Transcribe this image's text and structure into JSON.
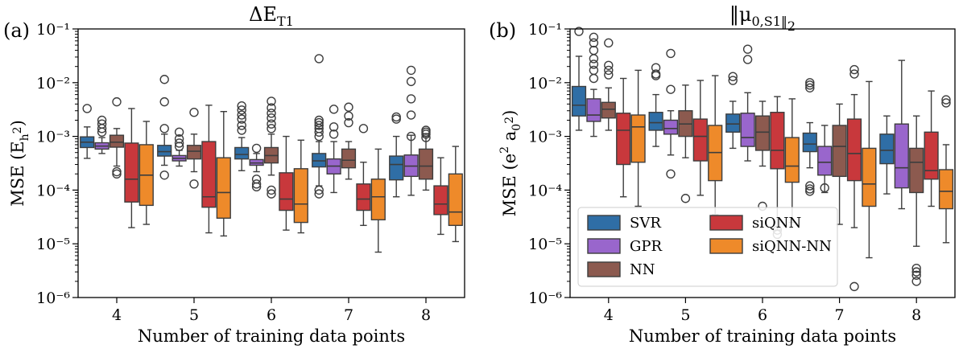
{
  "chart_data": [
    {
      "type": "box",
      "panel_label": "(a)",
      "title": "ΔE_T1",
      "xlabel": "Number of training data points",
      "ylabel": "MSE (E_h^2)",
      "yscale": "log",
      "ylim": [
        1e-06,
        0.1
      ],
      "y_ticks": [
        {
          "value": 1e-06,
          "label": "10⁻⁶"
        },
        {
          "value": 1e-05,
          "label": "10⁻⁵"
        },
        {
          "value": 0.0001,
          "label": "10⁻⁴"
        },
        {
          "value": 0.001,
          "label": "10⁻³"
        },
        {
          "value": 0.01,
          "label": "10⁻²"
        },
        {
          "value": 0.1,
          "label": "10⁻¹"
        }
      ],
      "categories": [
        "4",
        "5",
        "6",
        "7",
        "8"
      ],
      "series": [
        {
          "name": "SVR",
          "color": "#2f6ea6",
          "boxes": [
            {
              "whislo": 0.00039,
              "q1": 0.00062,
              "med": 0.00078,
              "q3": 0.00098,
              "whishi": 0.0015,
              "fliers": [
                0.0033
              ]
            },
            {
              "whislo": 0.00029,
              "q1": 0.00043,
              "med": 0.00052,
              "q3": 0.00068,
              "whishi": 0.0011,
              "fliers": [
                0.0014,
                0.0044,
                0.0115,
                0.00019
              ]
            },
            {
              "whislo": 0.00023,
              "q1": 0.00038,
              "med": 0.00046,
              "q3": 0.00062,
              "whishi": 0.00095,
              "fliers": [
                0.0013,
                0.0016,
                0.0021,
                0.0025,
                0.0031,
                0.0037
              ]
            },
            {
              "whislo": 0.00012,
              "q1": 0.00027,
              "med": 0.00035,
              "q3": 0.00048,
              "whishi": 0.0008,
              "fliers": [
                0.001,
                0.0012,
                0.0014,
                0.0016,
                0.0018,
                0.002,
                0.0001,
                8.5e-05,
                0.028
              ]
            },
            {
              "whislo": 7.5e-05,
              "q1": 0.000155,
              "med": 0.0003,
              "q3": 0.00043,
              "whishi": 0.001,
              "fliers": [
                0.0021,
                0.0023
              ]
            }
          ]
        },
        {
          "name": "GPR",
          "color": "#9966cc",
          "boxes": [
            {
              "whislo": 0.00048,
              "q1": 0.00058,
              "med": 0.00066,
              "q3": 0.00076,
              "whishi": 0.00095,
              "fliers": [
                0.0012,
                0.0014,
                0.0017,
                0.002
              ]
            },
            {
              "whislo": 0.00028,
              "q1": 0.00035,
              "med": 0.00039,
              "q3": 0.00044,
              "whishi": 0.00055,
              "fliers": [
                0.00065,
                0.00075,
                0.0009,
                0.0012
              ]
            },
            {
              "whislo": 0.00022,
              "q1": 0.00029,
              "med": 0.00032,
              "q3": 0.00037,
              "whishi": 0.00048,
              "fliers": [
                0.0006,
                0.00016,
                0.00013,
                0.000115
              ]
            },
            {
              "whislo": 9e-05,
              "q1": 0.0002,
              "med": 0.00028,
              "q3": 0.00038,
              "whishi": 0.0008,
              "fliers": [
                0.0011,
                0.0015,
                0.0032
              ]
            },
            {
              "whislo": 8e-05,
              "q1": 0.00018,
              "med": 0.00028,
              "q3": 0.00045,
              "whishi": 0.00105,
              "fliers": [
                0.001,
                0.0025,
                0.005,
                0.0105,
                0.017
              ]
            }
          ]
        },
        {
          "name": "NN",
          "color": "#8c5a4f",
          "boxes": [
            {
              "whislo": 0.00028,
              "q1": 0.00063,
              "med": 0.00078,
              "q3": 0.00105,
              "whishi": 0.0014,
              "fliers": [
                0.0044,
                0.00022,
                0.0002
              ]
            },
            {
              "whislo": 0.00022,
              "q1": 0.00038,
              "med": 0.00053,
              "q3": 0.00068,
              "whishi": 0.0011,
              "fliers": [
                0.0028,
                0.00013
              ]
            },
            {
              "whislo": 0.00019,
              "q1": 0.00032,
              "med": 0.00044,
              "q3": 0.00062,
              "whishi": 0.0011,
              "fliers": [
                0.0014,
                0.0017,
                0.0022,
                0.0027,
                0.0034,
                0.0045,
                0.0001,
                8.5e-05
              ]
            },
            {
              "whislo": 0.00016,
              "q1": 0.00026,
              "med": 0.00036,
              "q3": 0.00058,
              "whishi": 0.0008,
              "fliers": [
                0.0018,
                0.0024,
                0.0035
              ]
            },
            {
              "whislo": 0.0001,
              "q1": 0.00016,
              "med": 0.00028,
              "q3": 0.00058,
              "whishi": 0.001,
              "fliers": [
                0.0012,
                0.0011,
                0.0013,
                0.00095
              ]
            }
          ]
        },
        {
          "name": "siQNN",
          "color": "#c8383c",
          "boxes": [
            {
              "whislo": 2e-05,
              "q1": 6e-05,
              "med": 0.00016,
              "q3": 0.00075,
              "whishi": 0.0033,
              "fliers": []
            },
            {
              "whislo": 1.6e-05,
              "q1": 4.8e-05,
              "med": 7.5e-05,
              "q3": 0.0008,
              "whishi": 0.0038,
              "fliers": []
            },
            {
              "whislo": 1.8e-05,
              "q1": 4.2e-05,
              "med": 6.8e-05,
              "q3": 0.00021,
              "whishi": 0.001,
              "fliers": []
            },
            {
              "whislo": 2.2e-05,
              "q1": 4.2e-05,
              "med": 6.8e-05,
              "q3": 0.00013,
              "whishi": 0.00033,
              "fliers": [
                0.0014
              ]
            },
            {
              "whislo": 1.5e-05,
              "q1": 3.5e-05,
              "med": 5.5e-05,
              "q3": 0.00012,
              "whishi": 0.0004,
              "fliers": []
            }
          ]
        },
        {
          "name": "siQNN-NN",
          "color": "#ee8a2a",
          "boxes": [
            {
              "whislo": 2.3e-05,
              "q1": 5.2e-05,
              "med": 0.00019,
              "q3": 0.0007,
              "whishi": 0.0019,
              "fliers": []
            },
            {
              "whislo": 1.4e-05,
              "q1": 3e-05,
              "med": 9e-05,
              "q3": 0.0004,
              "whishi": 0.0029,
              "fliers": []
            },
            {
              "whislo": 1.6e-05,
              "q1": 2.5e-05,
              "med": 5.5e-05,
              "q3": 0.00025,
              "whishi": 0.00085,
              "fliers": []
            },
            {
              "whislo": 7e-06,
              "q1": 2.8e-05,
              "med": 7.5e-05,
              "q3": 0.00016,
              "whishi": 0.00058,
              "fliers": []
            },
            {
              "whislo": 1.1e-05,
              "q1": 2.2e-05,
              "med": 3.9e-05,
              "q3": 0.0002,
              "whishi": 0.00065,
              "fliers": []
            }
          ]
        }
      ]
    },
    {
      "type": "box",
      "panel_label": "(b)",
      "title": "‖μ_0,S1‖_2",
      "xlabel": "Number of training data points",
      "ylabel": "MSE (e^2 a_0^2)",
      "yscale": "log",
      "ylim": [
        1e-06,
        0.1
      ],
      "y_ticks": [
        {
          "value": 1e-06,
          "label": "10⁻⁶"
        },
        {
          "value": 1e-05,
          "label": "10⁻⁵"
        },
        {
          "value": 0.0001,
          "label": "10⁻⁴"
        },
        {
          "value": 0.001,
          "label": "10⁻³"
        },
        {
          "value": 0.01,
          "label": "10⁻²"
        },
        {
          "value": 0.1,
          "label": "10⁻¹"
        }
      ],
      "categories": [
        "4",
        "5",
        "6",
        "7",
        "8"
      ],
      "legend": {
        "placement": "lower-left",
        "columns": 2
      },
      "series": [
        {
          "name": "SVR",
          "color": "#2f6ea6",
          "boxes": [
            {
              "whislo": 0.0013,
              "q1": 0.0024,
              "med": 0.0038,
              "q3": 0.0085,
              "whishi": 0.031,
              "fliers": [
                0.09
              ]
            },
            {
              "whislo": 0.00065,
              "q1": 0.0013,
              "med": 0.0018,
              "q3": 0.0028,
              "whishi": 0.006,
              "fliers": [
                0.0135,
                0.0145,
                0.019
              ]
            },
            {
              "whislo": 0.0006,
              "q1": 0.0012,
              "med": 0.0017,
              "q3": 0.0026,
              "whishi": 0.0045,
              "fliers": [
                0.011,
                0.013
              ]
            },
            {
              "whislo": 0.00026,
              "q1": 0.00052,
              "med": 0.00072,
              "q3": 0.00115,
              "whishi": 0.0018,
              "fliers": [
                0.008,
                0.009,
                0.01,
                0.00012,
                0.000105,
                9.5e-05
              ]
            },
            {
              "whislo": 8.5e-05,
              "q1": 0.00031,
              "med": 0.00055,
              "q3": 0.0011,
              "whishi": 0.0024,
              "fliers": []
            }
          ]
        },
        {
          "name": "GPR",
          "color": "#9966cc",
          "boxes": [
            {
              "whislo": 0.001,
              "q1": 0.0019,
              "med": 0.0025,
              "q3": 0.005,
              "whishi": 0.0075,
              "fliers": [
                0.012,
                0.017,
                0.022,
                0.028,
                0.04,
                0.055,
                0.07
              ]
            },
            {
              "whislo": 0.00045,
              "q1": 0.0011,
              "med": 0.0014,
              "q3": 0.002,
              "whishi": 0.003,
              "fliers": [
                0.0075,
                0.035,
                0.0002
              ]
            },
            {
              "whislo": 0.00035,
              "q1": 0.00065,
              "med": 0.00095,
              "q3": 0.0027,
              "whishi": 0.0065,
              "fliers": [
                0.027,
                0.042
              ]
            },
            {
              "whislo": 9e-05,
              "q1": 0.00019,
              "med": 0.00033,
              "q3": 0.00065,
              "whishi": 0.0016,
              "fliers": [
                0.00011
              ]
            },
            {
              "whislo": 4.5e-05,
              "q1": 0.00011,
              "med": 0.00026,
              "q3": 0.0017,
              "whishi": 0.026,
              "fliers": []
            }
          ]
        },
        {
          "name": "NN",
          "color": "#8c5a4f",
          "boxes": [
            {
              "whislo": 0.0013,
              "q1": 0.0022,
              "med": 0.0032,
              "q3": 0.0043,
              "whishi": 0.008,
              "fliers": [
                0.014,
                0.017,
                0.021,
                0.055
              ]
            },
            {
              "whislo": 0.0004,
              "q1": 0.001,
              "med": 0.0017,
              "q3": 0.003,
              "whishi": 0.009,
              "fliers": [
                7e-05
              ]
            },
            {
              "whislo": 0.00028,
              "q1": 0.00055,
              "med": 0.0012,
              "q3": 0.0024,
              "whishi": 0.0045,
              "fliers": [
                5e-05
              ]
            },
            {
              "whislo": 2.3e-05,
              "q1": 0.00018,
              "med": 0.00065,
              "q3": 0.0016,
              "whishi": 0.004,
              "fliers": []
            },
            {
              "whislo": 9e-06,
              "q1": 9e-05,
              "med": 0.00033,
              "q3": 0.0006,
              "whishi": 0.0024,
              "fliers": [
                3.5e-06,
                3e-06,
                2.6e-06,
                2e-06
              ]
            }
          ]
        },
        {
          "name": "siQNN",
          "color": "#c8383c",
          "boxes": [
            {
              "whislo": 7.5e-05,
              "q1": 0.0003,
              "med": 0.0013,
              "q3": 0.0027,
              "whishi": 0.012,
              "fliers": []
            },
            {
              "whislo": 8e-05,
              "q1": 0.00035,
              "med": 0.001,
              "q3": 0.0021,
              "whishi": 0.011,
              "fliers": []
            },
            {
              "whislo": 1.8e-05,
              "q1": 0.00025,
              "med": 0.00055,
              "q3": 0.0028,
              "whishi": 0.0055,
              "fliers": [
                1.5e-05,
                1.8e-05
              ]
            },
            {
              "whislo": 2e-05,
              "q1": 0.00015,
              "med": 0.00048,
              "q3": 0.0021,
              "whishi": 0.006,
              "fliers": [
                0.0145,
                0.0175,
                1.6e-06
              ]
            },
            {
              "whislo": 5e-05,
              "q1": 0.00016,
              "med": 0.00023,
              "q3": 0.0012,
              "whishi": 0.007,
              "fliers": []
            }
          ]
        },
        {
          "name": "siQNN-NN",
          "color": "#ee8a2a",
          "boxes": [
            {
              "whislo": 5e-05,
              "q1": 0.00033,
              "med": 0.0015,
              "q3": 0.0025,
              "whishi": 0.017,
              "fliers": []
            },
            {
              "whislo": 3.5e-05,
              "q1": 0.00015,
              "med": 0.0005,
              "q3": 0.0016,
              "whishi": 0.0135,
              "fliers": []
            },
            {
              "whislo": 2.5e-05,
              "q1": 0.00014,
              "med": 0.00028,
              "q3": 0.00095,
              "whishi": 0.005,
              "fliers": []
            },
            {
              "whislo": 5.5e-06,
              "q1": 5e-05,
              "med": 0.00013,
              "q3": 0.0006,
              "whishi": 0.0105,
              "fliers": []
            },
            {
              "whislo": 1.05e-05,
              "q1": 4.5e-05,
              "med": 9.5e-05,
              "q3": 0.00024,
              "whishi": 0.0007,
              "fliers": [
                0.0042,
                0.0048
              ]
            }
          ]
        }
      ]
    }
  ]
}
